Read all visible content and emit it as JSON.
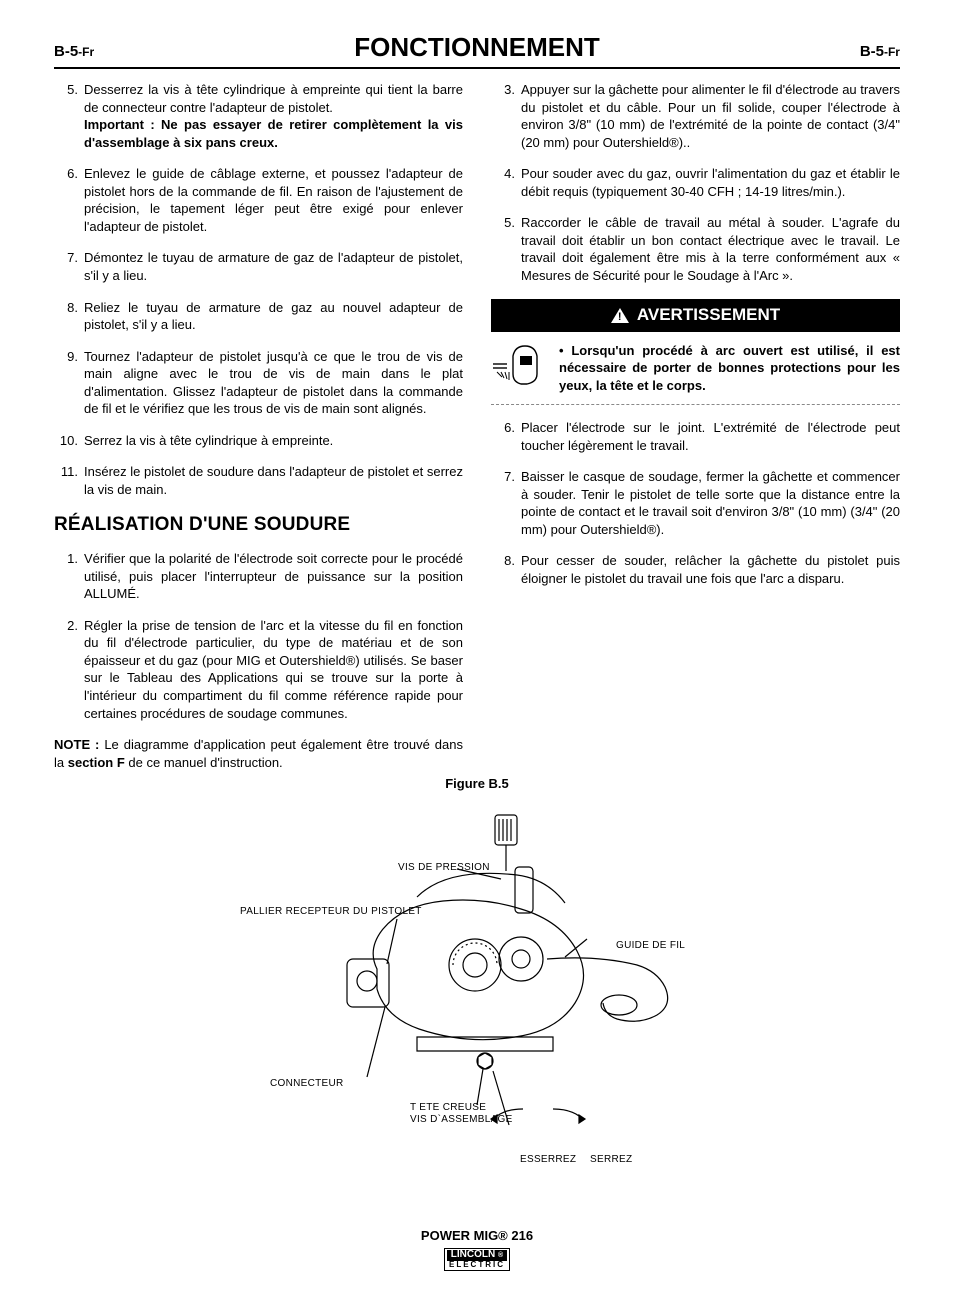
{
  "header": {
    "code_prefix": "B-5",
    "code_suffix": "-Fr",
    "title": "FONCTIONNEMENT"
  },
  "left": {
    "steps1": [
      {
        "n": "5.",
        "text": "Desserrez la vis à tête cylindrique à empreinte qui tient la barre de connecteur contre l'adapteur de pistolet.",
        "bold_suffix": "Important : Ne pas essayer de retirer complètement la vis d'assemblage à six pans creux."
      },
      {
        "n": "6.",
        "text": "Enlevez le guide de câblage externe, et poussez l'adapteur de pistolet hors de la commande de fil. En raison de l'ajustement de précision, le tapement léger peut être exigé pour enlever l'adapteur de pistolet."
      },
      {
        "n": "7.",
        "text": "Démontez le tuyau de armature de gaz de l'adapteur de pistolet, s'il y a lieu."
      },
      {
        "n": "8.",
        "text": "Reliez le tuyau de armature de gaz au nouvel adapteur de pistolet, s'il y a lieu."
      },
      {
        "n": "9.",
        "text": "Tournez l'adapteur de pistolet jusqu'à ce que le trou de vis de main aligne avec le trou de vis de main dans le plat d'alimentation. Glissez l'adapteur de pistolet dans la commande de fil et le vérifiez que les trous de vis de main sont alignés."
      },
      {
        "n": "10.",
        "text": "Serrez la vis à tête cylindrique à empreinte."
      },
      {
        "n": "11.",
        "text": "Insérez le pistolet de soudure dans l'adapteur de pistolet et serrez la vis de main."
      }
    ],
    "section_title": "RÉALISATION D'UNE SOUDURE",
    "steps2": [
      {
        "n": "1.",
        "text": "Vérifier que la polarité de l'électrode soit correcte pour le procédé utilisé, puis placer l'interrupteur de puissance sur la position ALLUMÉ."
      },
      {
        "n": "2.",
        "text": "Régler la prise de tension de l'arc et la vitesse du fil en fonction du fil d'électrode particulier, du type de matériau et de son épaisseur et du gaz (pour MIG et Outershield®) utilisés. Se baser sur le Tableau des Applications qui se trouve sur la porte à l'intérieur du compartiment du fil comme référence rapide pour certaines procédures de soudage communes."
      }
    ],
    "note_prefix": "NOTE :",
    "note_text": " Le diagramme d'application peut également être trouvé dans la ",
    "note_bold_mid": "section F",
    "note_text_end": " de ce manuel d'instruction."
  },
  "right": {
    "steps1": [
      {
        "n": "3.",
        "text": "Appuyer sur la gâchette pour alimenter le fil d'électrode au travers du pistolet et du câble. Pour un fil solide, couper l'électrode à environ 3/8\" (10 mm) de l'extrémité de la pointe de contact (3/4\" (20 mm) pour Outershield®).."
      },
      {
        "n": "4.",
        "text": "Pour souder avec du gaz, ouvrir l'alimentation du gaz et établir le débit requis (typiquement 30-40 CFH ; 14-19 litres/min.)."
      },
      {
        "n": "5.",
        "text": "Raccorder le câble de travail au métal à souder. L'agrafe du travail doit établir un bon contact électrique avec le travail. Le travail doit également être mis à la terre conformément aux « Mesures de Sécurité pour le Soudage à l'Arc »."
      }
    ],
    "warn_title": "AVERTISSEMENT",
    "warn_text": "• Lorsqu'un procédé à arc ouvert est utilisé, il est nécessaire de porter de bonnes protections pour les yeux, la tête et le corps.",
    "steps2": [
      {
        "n": "6.",
        "text": "Placer l'électrode sur le joint. L'extrémité de l'électrode peut toucher légèrement le travail."
      },
      {
        "n": "7.",
        "text": "Baisser le casque de soudage, fermer la gâchette et commencer à souder. Tenir le pistolet de telle sorte que la distance entre la pointe de contact et le travail soit d'environ 3/8\" (10 mm) (3/4\" (20 mm) pour Outershield®)."
      },
      {
        "n": "8.",
        "text": "Pour cesser de souder, relâcher la gâchette du pistolet puis éloigner le pistolet du travail une fois que l'arc a disparu."
      }
    ]
  },
  "figure": {
    "title": "Figure B.5",
    "labels": {
      "vis_pression": "VIS DE PRESSION",
      "pallier": "PALLIER RECEPTEUR DU PISTOLET",
      "guide_fil": "GUIDE DE FIL",
      "connecteur": "CONNECTEUR",
      "tete_creuse": "T ETE CREUSE",
      "vis_assemblage": "VIS D`ASSEMBLAGE",
      "esserrez": "ESSERREZ",
      "serrez": "SERREZ"
    }
  },
  "footer": {
    "product": "POWER MIG® 216",
    "logo_top": "LINCOLN",
    "logo_bot": "ELECTRIC"
  }
}
